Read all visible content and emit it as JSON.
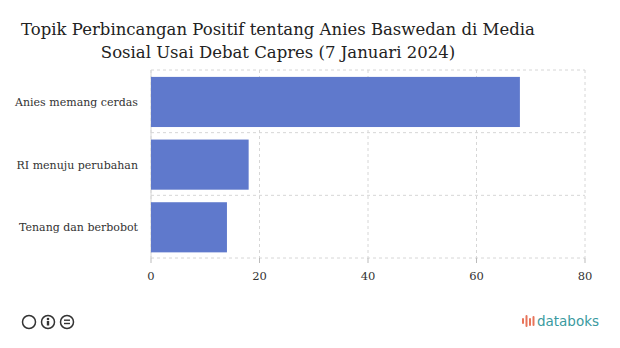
{
  "chart_data": {
    "type": "bar",
    "title": "Topik Perbincangan Positif tentang Anies Baswedan di Media Sosial Usai Debat Capres (7 Januari 2024)",
    "categories": [
      "Anies memang cerdas",
      "RI menuju perubahan",
      "Tenang dan berbobot"
    ],
    "values": [
      68,
      18,
      14
    ],
    "color": "#5f79cc",
    "orientation": "horizontal",
    "xlim": [
      0,
      80
    ],
    "xticks": [
      0,
      20,
      40,
      60,
      80
    ],
    "grid": true,
    "annotations": [
      "databoks"
    ]
  }
}
